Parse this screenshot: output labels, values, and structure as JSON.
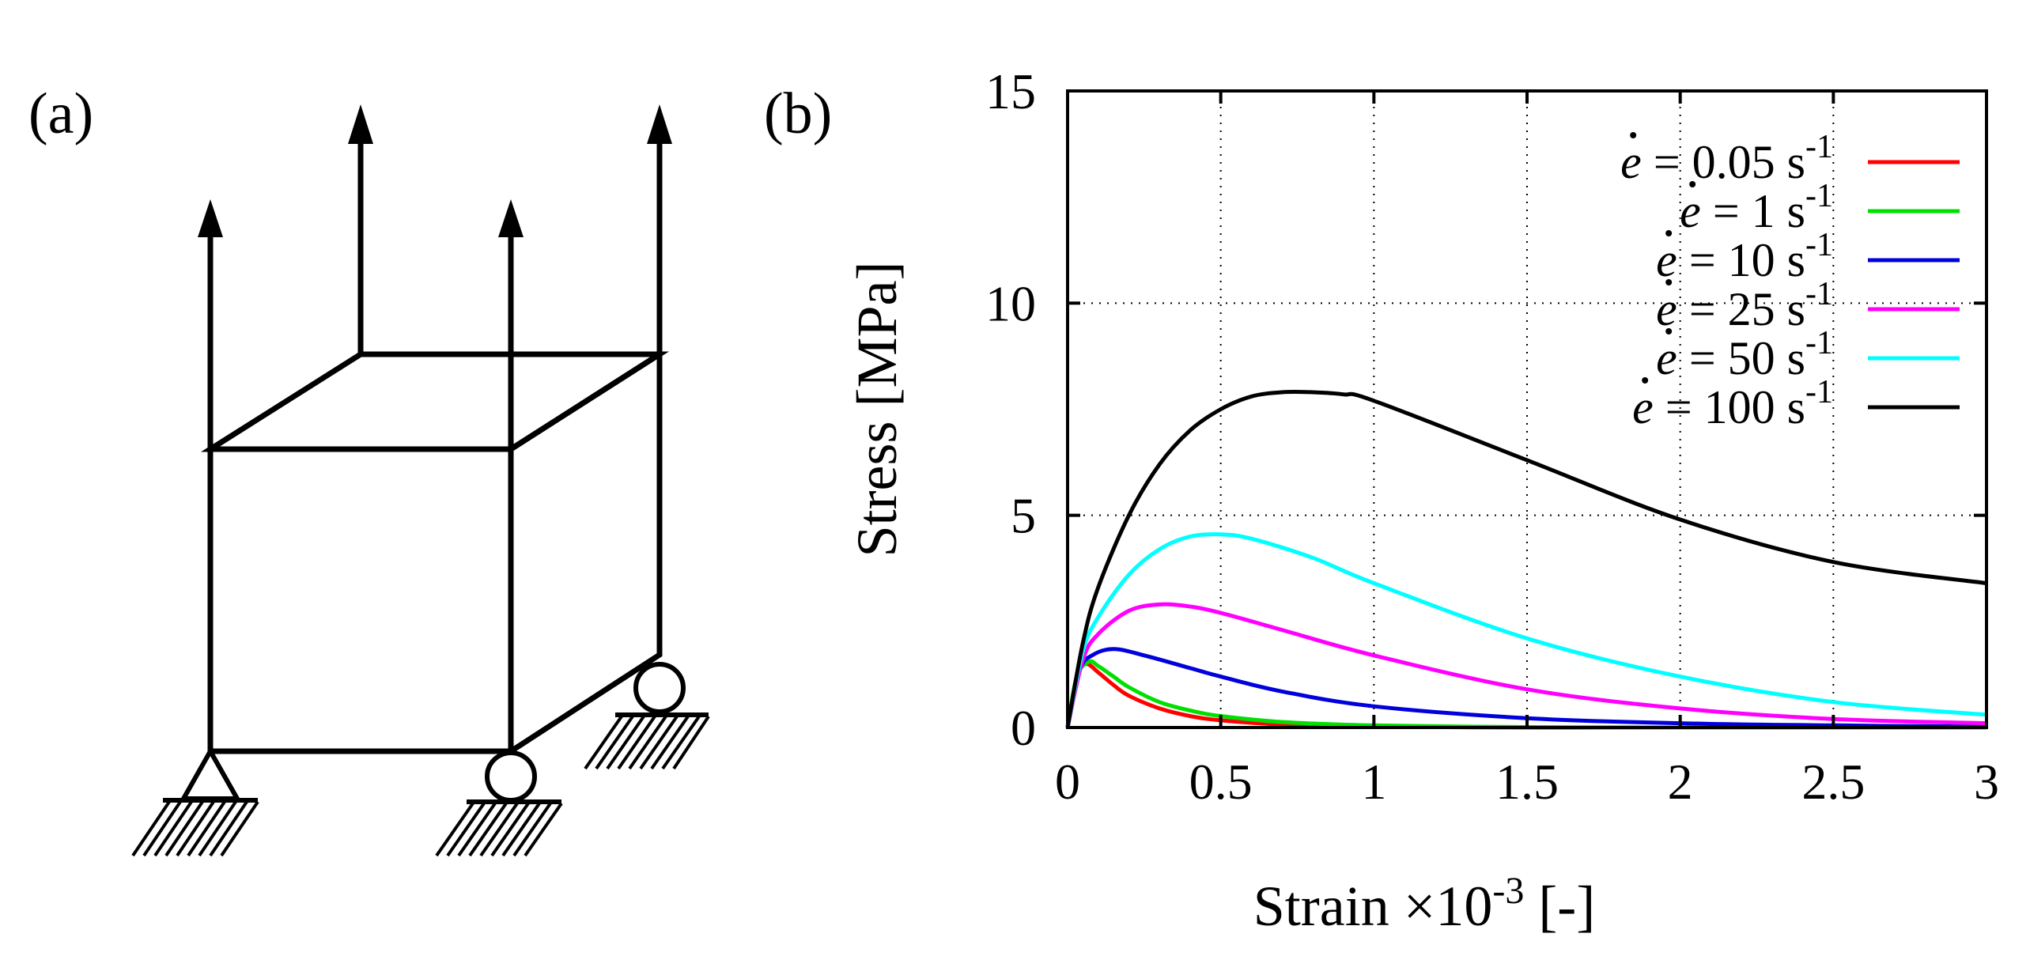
{
  "panels": {
    "a": {
      "label": "(a)"
    },
    "b": {
      "label": "(b)"
    }
  },
  "chart_data": {
    "type": "line",
    "title": "",
    "xlabel": "Strain ×10⁻³ [-]",
    "xlabel_main": "Strain ×10",
    "xlabel_exp": "-3",
    "xlabel_unit": " [-]",
    "ylabel": "Stress [MPa]",
    "xlim": [
      0,
      3
    ],
    "ylim": [
      0,
      15
    ],
    "xticks": [
      0,
      0.5,
      1,
      1.5,
      2,
      2.5,
      3
    ],
    "xtick_labels": [
      "0",
      "0.5",
      "1",
      "1.5",
      "2",
      "2.5",
      "3"
    ],
    "yticks": [
      0,
      5,
      10,
      15
    ],
    "ytick_labels": [
      "0",
      "5",
      "10",
      "15"
    ],
    "grid": true,
    "legend_position": "top-right",
    "series": [
      {
        "name": "ė = 0.05 s⁻¹",
        "legend_prefix": "= 0.05 s",
        "legend_exp": "-1",
        "color": "#ff0000",
        "x": [
          0,
          0.03,
          0.06,
          0.1,
          0.15,
          0.2,
          0.3,
          0.4,
          0.5,
          0.7,
          1.0,
          1.5,
          2.0,
          3.0
        ],
        "y": [
          0,
          1.2,
          1.5,
          1.3,
          1.0,
          0.75,
          0.45,
          0.27,
          0.17,
          0.07,
          0.02,
          0.0,
          0.0,
          0.0
        ]
      },
      {
        "name": "ė = 1 s⁻¹",
        "legend_prefix": "=    1 s",
        "legend_exp": "-1",
        "color": "#00e000",
        "x": [
          0,
          0.03,
          0.07,
          0.1,
          0.15,
          0.2,
          0.3,
          0.4,
          0.5,
          0.7,
          1.0,
          1.5,
          2.0,
          3.0
        ],
        "y": [
          0,
          1.2,
          1.55,
          1.45,
          1.2,
          0.95,
          0.6,
          0.4,
          0.27,
          0.13,
          0.05,
          0.01,
          0.0,
          0.0
        ]
      },
      {
        "name": "ė = 10 s⁻¹",
        "legend_prefix": "=   10 s",
        "legend_exp": "-1",
        "color": "#0000dd",
        "x": [
          0,
          0.04,
          0.08,
          0.15,
          0.25,
          0.4,
          0.5,
          0.7,
          1.0,
          1.5,
          2.0,
          2.5,
          3.0
        ],
        "y": [
          0,
          1.35,
          1.7,
          1.85,
          1.7,
          1.4,
          1.2,
          0.85,
          0.5,
          0.22,
          0.1,
          0.05,
          0.02
        ]
      },
      {
        "name": "ė = 25 s⁻¹",
        "legend_prefix": "=   25 s",
        "legend_exp": "-1",
        "color": "#ff00ff",
        "x": [
          0,
          0.05,
          0.1,
          0.2,
          0.3,
          0.4,
          0.5,
          0.7,
          1.0,
          1.5,
          2.0,
          2.5,
          3.0
        ],
        "y": [
          0,
          1.6,
          2.2,
          2.75,
          2.9,
          2.85,
          2.7,
          2.3,
          1.7,
          0.9,
          0.45,
          0.2,
          0.1
        ]
      },
      {
        "name": "ė = 50 s⁻¹",
        "legend_prefix": "=   50 s",
        "legend_exp": "-1",
        "color": "#00ffff",
        "x": [
          0,
          0.05,
          0.1,
          0.2,
          0.3,
          0.4,
          0.5,
          0.6,
          0.8,
          1.0,
          1.5,
          2.0,
          2.5,
          3.0
        ],
        "y": [
          0,
          1.8,
          2.6,
          3.6,
          4.2,
          4.5,
          4.55,
          4.45,
          4.0,
          3.4,
          2.1,
          1.2,
          0.6,
          0.3
        ]
      },
      {
        "name": "ė = 100 s⁻¹",
        "legend_prefix": "=  100 s",
        "legend_exp": "-1",
        "color": "#000000",
        "x": [
          0,
          0.05,
          0.1,
          0.2,
          0.3,
          0.4,
          0.5,
          0.6,
          0.7,
          0.8,
          0.9,
          1.0,
          1.5,
          2.0,
          2.5,
          3.0
        ],
        "y": [
          0,
          2.0,
          3.3,
          5.0,
          6.2,
          7.0,
          7.5,
          7.8,
          7.9,
          7.9,
          7.85,
          7.7,
          6.3,
          4.9,
          3.9,
          3.4
        ]
      }
    ]
  }
}
